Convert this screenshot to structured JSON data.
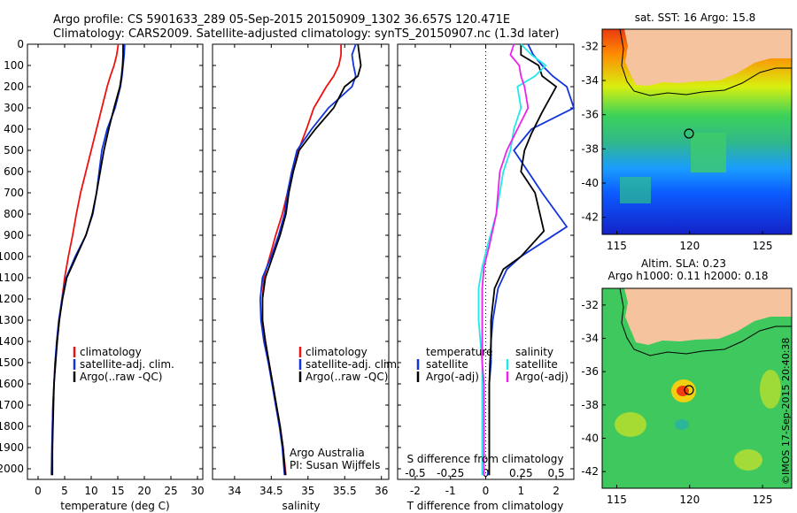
{
  "header": {
    "title_line1": "Argo profile: CS 5901633_289 05-Sep-2015 20150909_1302 36.657S 120.471E",
    "title_line2": "Climatology: CARS2009. Satellite-adjusted climatology: synTS_20150907.nc (1.3d later)"
  },
  "colors": {
    "climatology": "#ee1111",
    "satellite": "#1133dd",
    "argo": "#000000",
    "satellite_salinity": "#22e8e8",
    "argo_salinity": "#ee22ee",
    "land": "#f5c49e"
  },
  "chart_data": [
    {
      "type": "line",
      "xlabel": "temperature (deg C)",
      "ylim": [
        2050,
        0
      ],
      "xlim": [
        -2,
        31
      ],
      "xticks": [
        0,
        5,
        10,
        15,
        20,
        25,
        30
      ],
      "yticks": [
        0,
        100,
        200,
        300,
        400,
        500,
        600,
        700,
        800,
        900,
        1000,
        1100,
        1200,
        1300,
        1400,
        1500,
        1600,
        1700,
        1800,
        1900,
        2000
      ],
      "legend": [
        "climatology",
        "satellite-adj. clim.",
        "Argo(..raw -QC)"
      ],
      "series": [
        {
          "name": "climatology",
          "color": "#ee1111",
          "x": [
            15.1,
            14.8,
            14.3,
            13.6,
            13.0,
            12.0,
            11.0,
            10.0,
            9.0,
            8.0,
            7.2,
            6.5,
            5.7,
            5.0,
            4.5,
            4.0,
            3.6,
            3.2,
            3.0,
            2.8,
            2.7,
            2.7,
            2.6
          ],
          "y": [
            0,
            50,
            100,
            150,
            200,
            300,
            400,
            500,
            600,
            700,
            800,
            900,
            1000,
            1100,
            1200,
            1300,
            1400,
            1500,
            1600,
            1700,
            1800,
            1900,
            2030
          ]
        },
        {
          "name": "satellite-adj. clim.",
          "color": "#1133dd",
          "x": [
            16.3,
            16.2,
            16.0,
            15.8,
            15.5,
            14.5,
            13.0,
            12.0,
            11.5,
            11.0,
            10.3,
            9.0,
            7.0,
            5.3,
            4.5,
            3.9,
            3.5,
            3.2,
            3.0,
            2.8,
            2.7,
            2.6,
            2.5
          ],
          "y": [
            0,
            50,
            100,
            150,
            200,
            300,
            400,
            500,
            600,
            700,
            800,
            900,
            1000,
            1100,
            1200,
            1300,
            1400,
            1500,
            1600,
            1700,
            1800,
            1900,
            2030
          ]
        },
        {
          "name": "Argo(..raw -QC)",
          "color": "#000000",
          "x": [
            16.0,
            16.0,
            15.9,
            15.7,
            15.4,
            14.3,
            13.3,
            12.4,
            11.7,
            11.0,
            10.2,
            9.0,
            7.2,
            5.4,
            4.6,
            4.0,
            3.6,
            3.3,
            3.0,
            2.9,
            2.8,
            2.7,
            2.7
          ],
          "y": [
            0,
            50,
            100,
            150,
            200,
            300,
            400,
            500,
            600,
            700,
            800,
            900,
            1000,
            1100,
            1200,
            1300,
            1400,
            1500,
            1600,
            1700,
            1800,
            1900,
            2030
          ]
        }
      ]
    },
    {
      "type": "line",
      "xlabel": "salinity",
      "ylim": [
        2050,
        0
      ],
      "xlim": [
        33.7,
        36.1
      ],
      "xticks": [
        34,
        34.5,
        35,
        35.5,
        36
      ],
      "legend": [
        "climatology",
        "satellite-adj. clim.",
        "Argo(..raw -QC)"
      ],
      "annotation": [
        "Argo Australia",
        "PI: Susan Wijffels"
      ],
      "series": [
        {
          "name": "climatology",
          "color": "#ee1111",
          "x": [
            35.45,
            35.45,
            35.42,
            35.35,
            35.25,
            35.08,
            34.98,
            34.87,
            34.78,
            34.72,
            34.65,
            34.56,
            34.48,
            34.4,
            34.38,
            34.38,
            34.42,
            34.47,
            34.52,
            34.57,
            34.62,
            34.66,
            34.7
          ],
          "y": [
            0,
            50,
            100,
            150,
            200,
            300,
            400,
            500,
            600,
            700,
            800,
            900,
            1000,
            1100,
            1200,
            1300,
            1400,
            1500,
            1600,
            1700,
            1800,
            1900,
            2030
          ]
        },
        {
          "name": "satellite-adj. clim.",
          "color": "#1133dd",
          "x": [
            35.65,
            35.6,
            35.62,
            35.65,
            35.6,
            35.28,
            35.05,
            34.85,
            34.78,
            34.72,
            34.68,
            34.6,
            34.5,
            34.38,
            34.35,
            34.36,
            34.4,
            34.46,
            34.51,
            34.56,
            34.61,
            34.65,
            34.68
          ],
          "y": [
            0,
            50,
            100,
            150,
            200,
            300,
            400,
            500,
            600,
            700,
            800,
            900,
            1000,
            1100,
            1200,
            1300,
            1400,
            1500,
            1600,
            1700,
            1800,
            1900,
            2030
          ]
        },
        {
          "name": "Argo(..raw -QC)",
          "color": "#000000",
          "x": [
            35.68,
            35.7,
            35.72,
            35.68,
            35.5,
            35.35,
            35.1,
            34.88,
            34.8,
            34.74,
            34.7,
            34.62,
            34.52,
            34.42,
            34.38,
            34.38,
            34.42,
            34.47,
            34.52,
            34.57,
            34.62,
            34.66,
            34.69
          ],
          "y": [
            0,
            50,
            100,
            150,
            200,
            300,
            400,
            500,
            600,
            700,
            800,
            900,
            1000,
            1100,
            1200,
            1300,
            1400,
            1500,
            1600,
            1700,
            1800,
            1900,
            2030
          ]
        }
      ]
    },
    {
      "type": "line",
      "xlabel": "T difference from climatology",
      "xlabel_top": "S difference from climatology",
      "ylim": [
        2050,
        0
      ],
      "xlim": [
        -2.5,
        2.5
      ],
      "xticks": [
        -2,
        -1,
        0,
        1,
        2
      ],
      "xticks_s": [
        -0.5,
        -0.25,
        0,
        0.25,
        0.5
      ],
      "legend_temperature": [
        "temperature",
        "satellite",
        "Argo(-adj)"
      ],
      "legend_salinity": [
        "salinity",
        "satellite",
        "Argo(-adj)"
      ],
      "series": [
        {
          "name": "satellite",
          "group": "temperature",
          "color": "#1133dd",
          "x": [
            1.2,
            1.35,
            1.6,
            1.9,
            2.3,
            2.5,
            1.3,
            0.8,
            1.2,
            1.6,
            2.3,
            1.0,
            0.6,
            0.35,
            0.2,
            0.15,
            0.15,
            0.1,
            0.1,
            0.1,
            0.1,
            0.1,
            0.05
          ],
          "y": [
            0,
            50,
            100,
            150,
            200,
            300,
            400,
            500,
            600,
            700,
            860,
            1000,
            1060,
            1150,
            1300,
            1400,
            1500,
            1600,
            1700,
            1800,
            1900,
            2000,
            2030
          ]
        },
        {
          "name": "Argo(-adj)",
          "group": "temperature",
          "color": "#000000",
          "x": [
            1.0,
            1.0,
            1.5,
            1.6,
            2.0,
            1.6,
            1.3,
            1.1,
            1.0,
            1.4,
            1.65,
            1.0,
            0.5,
            0.25,
            0.15,
            0.15,
            0.12,
            0.1,
            0.1,
            0.1,
            0.1,
            0.1,
            0.1
          ],
          "y": [
            0,
            50,
            100,
            150,
            200,
            320,
            420,
            500,
            600,
            700,
            880,
            1000,
            1060,
            1150,
            1300,
            1400,
            1500,
            1600,
            1700,
            1800,
            1900,
            2000,
            2030
          ]
        },
        {
          "name": "satellite",
          "group": "salinity",
          "color": "#22e8e8",
          "x": [
            1.0,
            1.3,
            1.7,
            1.4,
            0.9,
            1.0,
            0.8,
            0.7,
            0.5,
            0.4,
            0.3,
            0.05,
            -0.1,
            -0.2,
            -0.2,
            -0.15,
            -0.1,
            -0.1,
            -0.1,
            -0.1,
            -0.1,
            -0.1,
            -0.1
          ],
          "y": [
            0,
            50,
            100,
            150,
            200,
            300,
            400,
            500,
            600,
            700,
            800,
            950,
            1050,
            1150,
            1300,
            1400,
            1500,
            1600,
            1700,
            1800,
            1900,
            2000,
            2030
          ]
        },
        {
          "name": "Argo(-adj)",
          "group": "salinity",
          "color": "#ee22ee",
          "x": [
            0.8,
            0.7,
            0.95,
            1.0,
            1.1,
            1.2,
            0.9,
            0.6,
            0.4,
            0.35,
            0.3,
            0.1,
            -0.05,
            -0.1,
            -0.1,
            -0.1,
            -0.1,
            -0.05,
            -0.05,
            -0.05,
            -0.05,
            -0.05,
            -0.05
          ],
          "y": [
            0,
            50,
            100,
            150,
            200,
            300,
            400,
            500,
            600,
            700,
            800,
            950,
            1050,
            1150,
            1300,
            1400,
            1500,
            1600,
            1700,
            1800,
            1900,
            2000,
            2030
          ]
        }
      ]
    },
    {
      "type": "heatmap",
      "title": "sat. SST: 16 Argo: 15.8",
      "xlim": [
        114,
        127
      ],
      "ylim": [
        -43,
        -31
      ],
      "xticks": [
        115,
        120,
        125
      ],
      "yticks": [
        -32,
        -34,
        -36,
        -38,
        -40,
        -42
      ],
      "marker": {
        "lon": 120.471,
        "lat": -36.657
      }
    },
    {
      "type": "heatmap",
      "title": "Altim. SLA: 0.23",
      "subtitle": "Argo h1000: 0.11 h2000: 0.18",
      "xlim": [
        114,
        127
      ],
      "ylim": [
        -43,
        -31
      ],
      "xticks": [
        115,
        120,
        125
      ],
      "yticks": [
        -32,
        -34,
        -36,
        -38,
        -40,
        -42
      ],
      "marker": {
        "lon": 120.471,
        "lat": -36.657
      }
    }
  ],
  "credit": "©IMOS 17-Sep-2015 20:40:38"
}
